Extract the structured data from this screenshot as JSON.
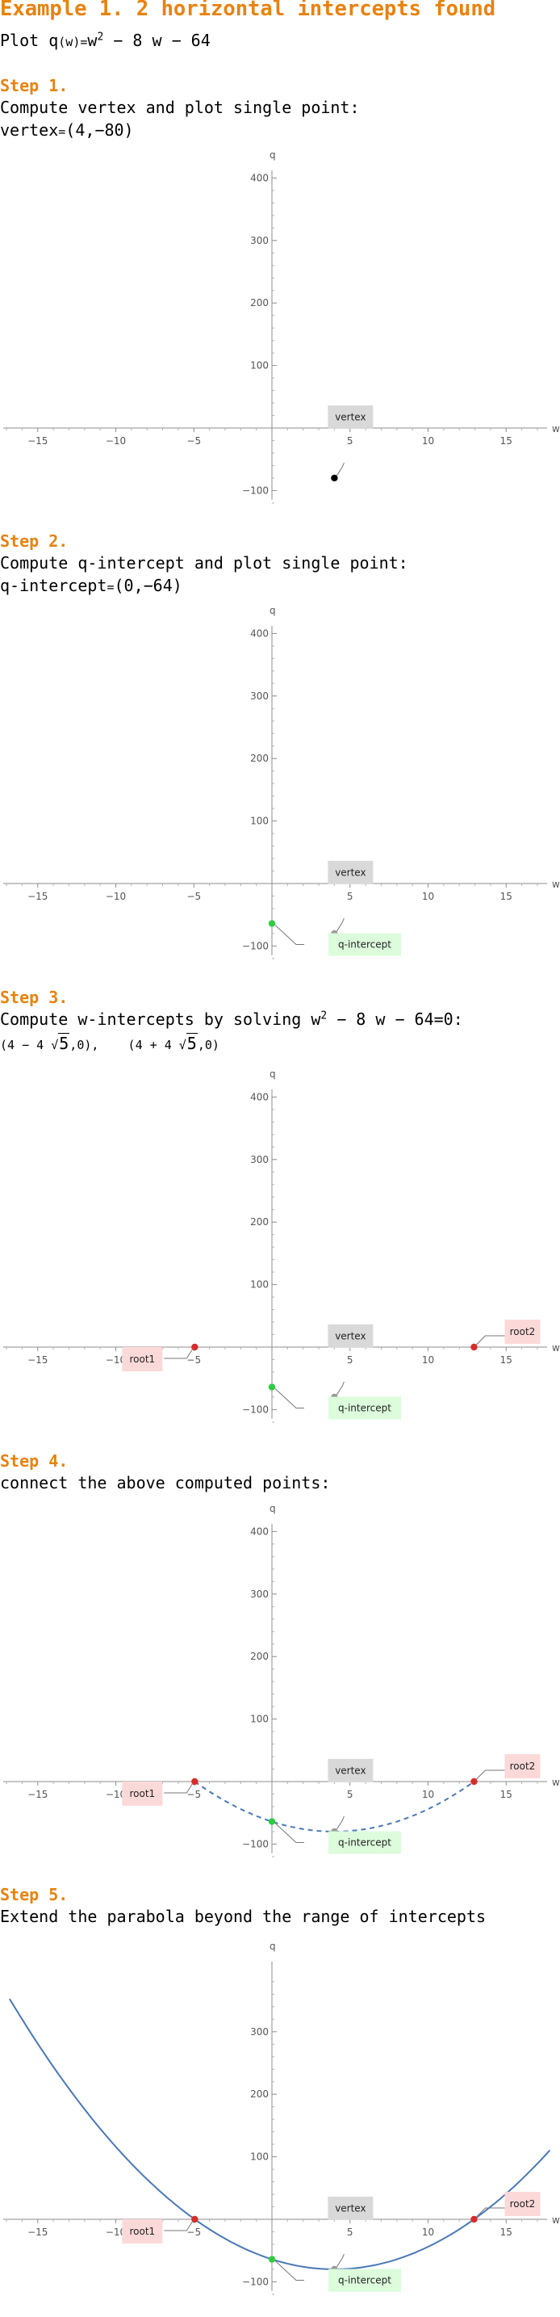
{
  "title": "Example 1. 2 horizontal intercepts found",
  "intro": {
    "prefix": "Plot ",
    "func": "q",
    "arg": "(w)",
    "eq": "=",
    "expr_a": "w",
    "expr_exp": "2",
    "expr_b": " − 8 ",
    "expr_c": "w",
    "expr_d": " − 64"
  },
  "steps": [
    {
      "label": "Step 1.",
      "text": "Compute vertex and plot single point:",
      "result": {
        "name": "vertex",
        "eq": "=",
        "value": "(4,−80)"
      }
    },
    {
      "label": "Step 2.",
      "text": "Compute q-intercept and plot single point:",
      "result": {
        "name": "q-intercept",
        "eq": "=",
        "value": "(0,−64)"
      }
    },
    {
      "label": "Step 3.",
      "text_a": "Compute w-intercepts by solving w",
      "text_exp": "2",
      "text_b": " − 8 w − 64=0:",
      "root1": {
        "open": "(4 − 4 ",
        "radicand": "5",
        "close": ",0),"
      },
      "root2": {
        "open": "(4 + 4 ",
        "radicand": "5",
        "close": ",0)"
      }
    },
    {
      "label": "Step 4.",
      "text": "connect the above computed points:"
    },
    {
      "label": "Step 5.",
      "text": "Extend the parabola beyond the range of intercepts"
    }
  ],
  "chart_data": [
    {
      "type": "scatter",
      "step": 1,
      "xlabel": "w",
      "ylabel": "q",
      "xlim": [
        -17,
        18
      ],
      "ylim": [
        -125,
        420
      ],
      "x_ticks": [
        -15,
        -10,
        -5,
        5,
        10,
        15
      ],
      "y_ticks": [
        -100,
        100,
        200,
        300,
        400
      ],
      "points": [
        {
          "x": 4,
          "y": -80,
          "color": "#000000",
          "label": "vertex",
          "label_bg": "#d9d9d9"
        }
      ],
      "curve": "none"
    },
    {
      "type": "scatter",
      "step": 2,
      "xlabel": "w",
      "ylabel": "q",
      "xlim": [
        -17,
        18
      ],
      "ylim": [
        -125,
        420
      ],
      "x_ticks": [
        -15,
        -10,
        -5,
        5,
        10,
        15
      ],
      "y_ticks": [
        -100,
        100,
        200,
        300,
        400
      ],
      "points": [
        {
          "x": 4,
          "y": -80,
          "color": "#9a9a9a",
          "label": "vertex",
          "label_bg": "#d9d9d9"
        },
        {
          "x": 0,
          "y": -64,
          "color": "#2ecc40",
          "label": "q-intercept",
          "label_bg": "#dcfcdc"
        }
      ],
      "curve": "none"
    },
    {
      "type": "scatter",
      "step": 3,
      "xlabel": "w",
      "ylabel": "q",
      "xlim": [
        -17,
        18
      ],
      "ylim": [
        -125,
        420
      ],
      "x_ticks": [
        -15,
        -10,
        -5,
        5,
        10,
        15
      ],
      "y_ticks": [
        -100,
        100,
        200,
        300,
        400
      ],
      "points": [
        {
          "x": 4,
          "y": -80,
          "color": "#9a9a9a",
          "label": "vertex",
          "label_bg": "#d9d9d9"
        },
        {
          "x": 0,
          "y": -64,
          "color": "#2ecc40",
          "label": "q-intercept",
          "label_bg": "#dcfcdc"
        },
        {
          "x": -4.944,
          "y": 0,
          "color": "#d62c2c",
          "label": "root1",
          "label_bg": "#fcd9d9"
        },
        {
          "x": 12.944,
          "y": 0,
          "color": "#d62c2c",
          "label": "root2",
          "label_bg": "#fcd9d9"
        }
      ],
      "curve": "none"
    },
    {
      "type": "line",
      "step": 4,
      "xlabel": "w",
      "ylabel": "q",
      "xlim": [
        -17,
        18
      ],
      "ylim": [
        -125,
        420
      ],
      "x_ticks": [
        -15,
        -10,
        -5,
        5,
        10,
        15
      ],
      "y_ticks": [
        -100,
        100,
        200,
        300,
        400
      ],
      "points": [
        {
          "x": 4,
          "y": -80,
          "color": "#9a9a9a",
          "label": "vertex",
          "label_bg": "#d9d9d9"
        },
        {
          "x": 0,
          "y": -64,
          "color": "#2ecc40",
          "label": "q-intercept",
          "label_bg": "#dcfcdc"
        },
        {
          "x": -4.944,
          "y": 0,
          "color": "#d62c2c",
          "label": "root1",
          "label_bg": "#fcd9d9"
        },
        {
          "x": 12.944,
          "y": 0,
          "color": "#d62c2c",
          "label": "root2",
          "label_bg": "#fcd9d9"
        }
      ],
      "curve": "dashed",
      "curve_color": "#4a78b8",
      "curve_domain": [
        -4.944,
        12.944
      ],
      "curve_coefficients": {
        "a": 1,
        "b": -8,
        "c": -64
      }
    },
    {
      "type": "line",
      "step": 5,
      "xlabel": "w",
      "ylabel": "q",
      "xlim": [
        -17,
        18
      ],
      "ylim": [
        -125,
        420
      ],
      "x_ticks": [
        -15,
        -10,
        -5,
        5,
        10,
        15
      ],
      "y_ticks": [
        -100,
        100,
        200,
        300
      ],
      "points": [
        {
          "x": 4,
          "y": -80,
          "color": "#9a9a9a",
          "label": "vertex",
          "label_bg": "#d9d9d9"
        },
        {
          "x": 0,
          "y": -64,
          "color": "#2ecc40",
          "label": "q-intercept",
          "label_bg": "#dcfcdc"
        },
        {
          "x": -4.944,
          "y": 0,
          "color": "#d62c2c",
          "label": "root1",
          "label_bg": "#fcd9d9"
        },
        {
          "x": 12.944,
          "y": 0,
          "color": "#d62c2c",
          "label": "root2",
          "label_bg": "#fcd9d9"
        }
      ],
      "curve": "solid",
      "curve_color": "#4a78b8",
      "curve_domain": [
        -16.8,
        17.8
      ],
      "curve_coefficients": {
        "a": 1,
        "b": -8,
        "c": -64
      }
    }
  ]
}
